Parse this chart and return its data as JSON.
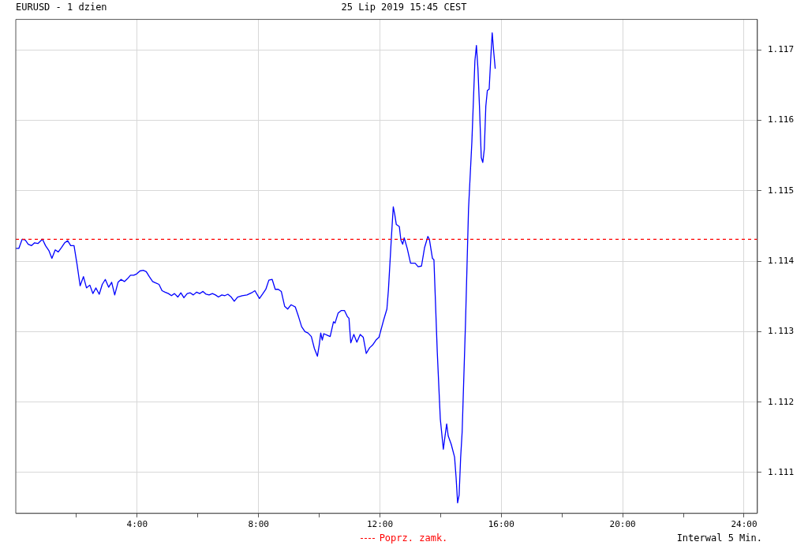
{
  "chart_data": {
    "type": "line",
    "title": "EURUSD - 1 dzien",
    "subtitle": "25 Lip 2019 15:45 CEST",
    "annotations": [
      "Interwal 5 Min."
    ],
    "x": [
      0,
      0.1,
      0.21,
      0.31,
      0.41,
      0.52,
      0.62,
      0.73,
      0.83,
      0.88,
      0.98,
      1.09,
      1.19,
      1.3,
      1.4,
      1.5,
      1.61,
      1.71,
      1.81,
      1.92,
      2.02,
      2.12,
      2.23,
      2.33,
      2.44,
      2.54,
      2.64,
      2.75,
      2.85,
      2.95,
      3.06,
      3.16,
      3.26,
      3.37,
      3.47,
      3.58,
      3.68,
      3.78,
      3.89,
      3.99,
      4.09,
      4.2,
      4.3,
      4.4,
      4.51,
      4.61,
      4.72,
      4.82,
      4.92,
      5.03,
      5.13,
      5.23,
      5.34,
      5.44,
      5.54,
      5.65,
      5.75,
      5.85,
      5.96,
      6.06,
      6.17,
      6.27,
      6.37,
      6.48,
      6.58,
      6.68,
      6.79,
      6.89,
      6.99,
      7.1,
      7.2,
      7.31,
      7.46,
      7.62,
      7.77,
      7.88,
      8.03,
      8.13,
      8.24,
      8.34,
      8.45,
      8.55,
      8.65,
      8.75,
      8.86,
      8.96,
      9.07,
      9.12,
      9.21,
      9.32,
      9.42,
      9.53,
      9.63,
      9.74,
      9.84,
      9.94,
      10.0,
      10.05,
      10.1,
      10.15,
      10.26,
      10.36,
      10.47,
      10.52,
      10.62,
      10.73,
      10.83,
      10.93,
      10.98,
      11.04,
      11.14,
      11.24,
      11.35,
      11.45,
      11.55,
      11.66,
      11.76,
      11.87,
      11.97,
      12.02,
      12.12,
      12.23,
      12.28,
      12.38,
      12.44,
      12.49,
      12.54,
      12.64,
      12.69,
      12.75,
      12.8,
      12.9,
      13.01,
      13.16,
      13.26,
      13.37,
      13.47,
      13.58,
      13.63,
      13.73,
      13.78,
      13.89,
      13.99,
      14.09,
      14.15,
      14.2,
      14.25,
      14.35,
      14.46,
      14.51,
      14.56,
      14.61,
      14.66,
      14.71,
      14.82,
      14.87,
      14.92,
      15.03,
      15.13,
      15.18,
      15.23,
      15.28,
      15.34,
      15.39,
      15.44,
      15.49,
      15.54,
      15.6,
      15.65,
      15.7,
      15.75,
      15.8
    ],
    "series": [
      {
        "color": "#0000ff",
        "values": [
          1.11418,
          1.11418,
          1.11431,
          1.1143,
          1.11424,
          1.11422,
          1.11426,
          1.11425,
          1.11429,
          1.11431,
          1.11422,
          1.11415,
          1.11404,
          1.11416,
          1.11413,
          1.11419,
          1.11426,
          1.11429,
          1.11422,
          1.11422,
          1.11395,
          1.11365,
          1.11378,
          1.11362,
          1.11366,
          1.11354,
          1.11362,
          1.11353,
          1.11367,
          1.11374,
          1.11363,
          1.1137,
          1.11352,
          1.1137,
          1.11374,
          1.11371,
          1.11375,
          1.1138,
          1.1138,
          1.11382,
          1.11386,
          1.11387,
          1.11385,
          1.11378,
          1.11371,
          1.11369,
          1.11367,
          1.11358,
          1.11356,
          1.11354,
          1.11351,
          1.11354,
          1.11349,
          1.11355,
          1.11348,
          1.11354,
          1.11355,
          1.11352,
          1.11356,
          1.11354,
          1.11357,
          1.11353,
          1.11352,
          1.11354,
          1.11352,
          1.11349,
          1.11352,
          1.11351,
          1.11353,
          1.11349,
          1.11343,
          1.11349,
          1.11351,
          1.11352,
          1.11355,
          1.11358,
          1.11347,
          1.11353,
          1.1136,
          1.11373,
          1.11374,
          1.1136,
          1.1136,
          1.11357,
          1.11336,
          1.11332,
          1.11338,
          1.11337,
          1.11335,
          1.11321,
          1.11307,
          1.113,
          1.11298,
          1.11293,
          1.11276,
          1.11265,
          1.11281,
          1.11298,
          1.11288,
          1.11297,
          1.11295,
          1.11293,
          1.11314,
          1.11312,
          1.11326,
          1.1133,
          1.1133,
          1.11321,
          1.11319,
          1.11284,
          1.11296,
          1.11285,
          1.11296,
          1.11292,
          1.11269,
          1.11277,
          1.11281,
          1.11288,
          1.11292,
          1.113,
          1.11316,
          1.11332,
          1.11359,
          1.11435,
          1.11477,
          1.11466,
          1.11452,
          1.11449,
          1.1143,
          1.11424,
          1.11433,
          1.11418,
          1.11397,
          1.11397,
          1.11392,
          1.11393,
          1.11419,
          1.11435,
          1.11431,
          1.11404,
          1.11402,
          1.11271,
          1.11176,
          1.11133,
          1.11153,
          1.11169,
          1.11152,
          1.1114,
          1.11122,
          1.11093,
          1.11057,
          1.11068,
          1.11121,
          1.11158,
          1.11312,
          1.11393,
          1.11474,
          1.11569,
          1.11684,
          1.11706,
          1.11673,
          1.1162,
          1.11547,
          1.1154,
          1.11559,
          1.1162,
          1.11642,
          1.11644,
          1.11686,
          1.11724,
          1.11697,
          1.11673
        ]
      }
    ],
    "xlim": [
      0,
      24.44
    ],
    "xticks": [
      {
        "value": 2,
        "label": null
      },
      {
        "value": 4,
        "label": "4:00"
      },
      {
        "value": 6,
        "label": null
      },
      {
        "value": 8,
        "label": "8:00"
      },
      {
        "value": 10,
        "label": null
      },
      {
        "value": 12,
        "label": "12:00"
      },
      {
        "value": 14,
        "label": null
      },
      {
        "value": 16,
        "label": "16:00"
      },
      {
        "value": 18,
        "label": null
      },
      {
        "value": 20,
        "label": "20:00"
      },
      {
        "value": 22,
        "label": null
      },
      {
        "value": 24,
        "label": "24:00"
      }
    ],
    "ylim": [
      1.11042,
      1.11743
    ],
    "yticks": [
      1.111,
      1.112,
      1.113,
      1.114,
      1.115,
      1.116,
      1.117
    ],
    "ref_lines": [
      {
        "axis": "y",
        "value": 1.11431,
        "label": "Poprz. zamk.",
        "color": "#ff0000",
        "line_style": "dashed"
      }
    ],
    "grid": true,
    "marker": "none",
    "line_style": "solid"
  }
}
